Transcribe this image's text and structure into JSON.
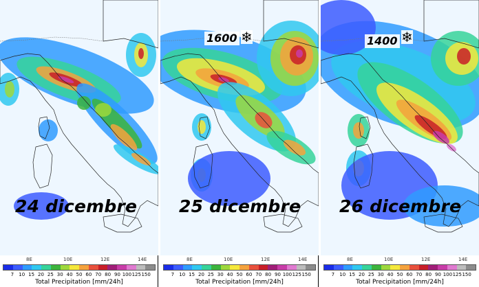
{
  "panels": [
    {
      "date": "24 dicembre",
      "snow_level": "",
      "has_snow": false
    },
    {
      "date": "25 dicembre",
      "snow_level": "1600",
      "has_snow": true
    },
    {
      "date": "26 dicembre",
      "snow_level": "1400",
      "has_snow": true
    }
  ],
  "snow_icon": "snowflake-icon",
  "longitudes": [
    "8E",
    "10E",
    "12E",
    "14E"
  ],
  "colorbar": {
    "title": "Total Precipitation [mm/24h]",
    "ticks": [
      "7",
      "10",
      "15",
      "20",
      "25",
      "30",
      "40",
      "50",
      "60",
      "70",
      "80",
      "90",
      "100",
      "125",
      "150"
    ],
    "colors": [
      "#1a2ce8",
      "#3c5cff",
      "#2f9bff",
      "#30c8f0",
      "#36d49a",
      "#3cb43c",
      "#9ed83c",
      "#f5e83c",
      "#f5a23c",
      "#e8503c",
      "#c81e28",
      "#a01e78",
      "#c83ca8",
      "#e07ad0",
      "#bdbdbd",
      "#8c8c8c"
    ]
  }
}
